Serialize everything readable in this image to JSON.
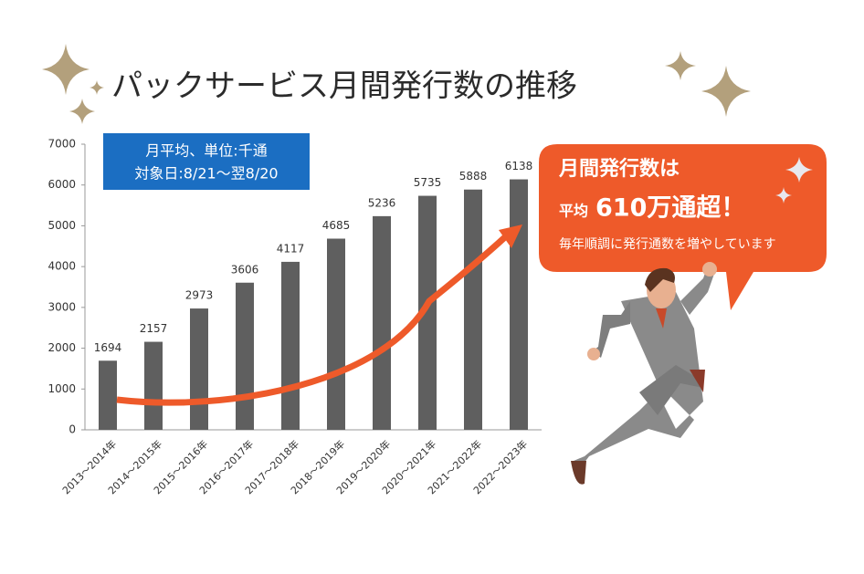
{
  "chart_data": {
    "type": "bar",
    "title": "パックサービス月間発行数の推移",
    "note_lines": [
      "月平均、単位:千通",
      "対象日:8/21～翌8/20"
    ],
    "callout": {
      "line1": "月間発行数は",
      "prefix": "平均",
      "highlight": "610万通超！",
      "line3": "毎年順調に発行通数を増やしています"
    },
    "categories": [
      "2013～2014年",
      "2014～2015年",
      "2015～2016年",
      "2016～2017年",
      "2017～2018年",
      "2018～2019年",
      "2019～2020年",
      "2020～2021年",
      "2021～2022年",
      "2022～2023年"
    ],
    "values": [
      1694,
      2157,
      2973,
      3606,
      4117,
      4685,
      5236,
      5735,
      5888,
      6138
    ],
    "color": "#5f5f5f",
    "ylim": [
      0,
      7000
    ],
    "yticks": [
      0,
      1000,
      2000,
      3000,
      4000,
      5000,
      6000,
      7000
    ],
    "grid": false
  }
}
